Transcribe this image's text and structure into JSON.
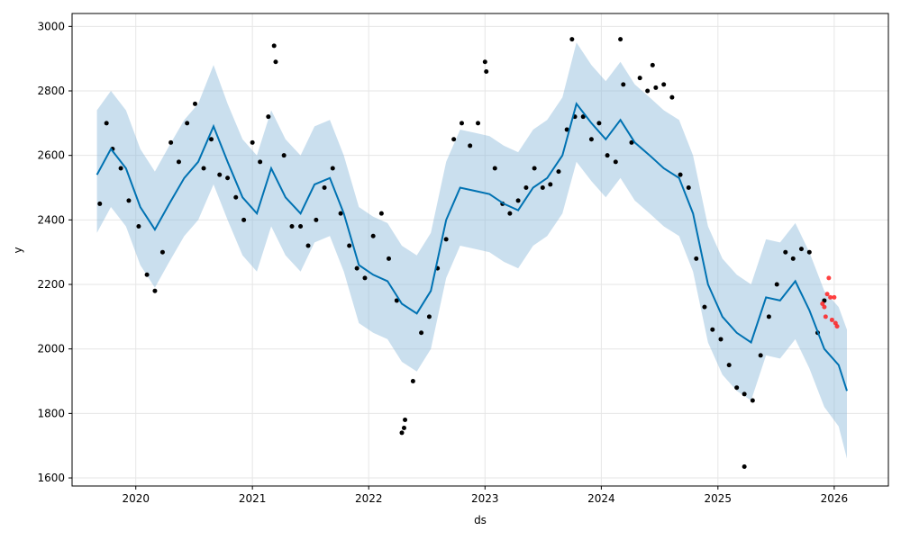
{
  "chart_data": {
    "type": "line",
    "title": "",
    "xlabel": "ds",
    "ylabel": "y",
    "xlim": [
      "2019-06-15",
      "2026-06-20"
    ],
    "ylim": [
      1575,
      3040
    ],
    "grid": true,
    "colors": {
      "forecast_line": "#0072B2",
      "uncertainty_band": "#8AB8D9",
      "observed_points": "#000000",
      "test_points": "#FF2020"
    },
    "x_ticks": [
      "2020",
      "2021",
      "2022",
      "2023",
      "2024",
      "2025",
      "2026"
    ],
    "y_ticks": [
      1600,
      1800,
      2000,
      2200,
      2400,
      2600,
      2800,
      3000
    ],
    "forecast": {
      "x": [
        "2019-09-01",
        "2019-10-15",
        "2019-12-01",
        "2020-01-15",
        "2020-03-01",
        "2020-04-15",
        "2020-06-01",
        "2020-07-15",
        "2020-09-01",
        "2020-10-15",
        "2020-12-01",
        "2021-01-15",
        "2021-03-01",
        "2021-04-15",
        "2021-06-01",
        "2021-07-15",
        "2021-09-01",
        "2021-10-15",
        "2021-12-01",
        "2022-01-15",
        "2022-03-01",
        "2022-04-15",
        "2022-06-01",
        "2022-07-15",
        "2022-09-01",
        "2022-10-15",
        "2022-12-01",
        "2023-01-15",
        "2023-03-01",
        "2023-04-15",
        "2023-06-01",
        "2023-07-15",
        "2023-09-01",
        "2023-10-15",
        "2023-12-01",
        "2024-01-15",
        "2024-03-01",
        "2024-04-15",
        "2024-06-01",
        "2024-07-15",
        "2024-09-01",
        "2024-10-15",
        "2024-12-01",
        "2025-01-15",
        "2025-03-01",
        "2025-04-15",
        "2025-06-01",
        "2025-07-15",
        "2025-09-01",
        "2025-10-15",
        "2025-12-01",
        "2026-01-15",
        "2026-02-10"
      ],
      "yhat": [
        2540,
        2620,
        2560,
        2440,
        2370,
        2450,
        2530,
        2580,
        2690,
        2580,
        2470,
        2420,
        2560,
        2470,
        2420,
        2510,
        2530,
        2420,
        2260,
        2230,
        2210,
        2140,
        2110,
        2180,
        2400,
        2500,
        2490,
        2480,
        2450,
        2430,
        2500,
        2530,
        2600,
        2760,
        2700,
        2650,
        2710,
        2640,
        2600,
        2560,
        2530,
        2420,
        2200,
        2100,
        2050,
        2020,
        2160,
        2150,
        2210,
        2120,
        2000,
        1950,
        1870
      ],
      "yhat_lower": [
        2360,
        2440,
        2380,
        2260,
        2190,
        2270,
        2350,
        2400,
        2510,
        2400,
        2290,
        2240,
        2380,
        2290,
        2240,
        2330,
        2350,
        2240,
        2080,
        2050,
        2030,
        1960,
        1930,
        2000,
        2220,
        2320,
        2310,
        2300,
        2270,
        2250,
        2320,
        2350,
        2420,
        2580,
        2520,
        2470,
        2530,
        2460,
        2420,
        2380,
        2350,
        2240,
        2020,
        1920,
        1870,
        1840,
        1980,
        1970,
        2030,
        1940,
        1820,
        1760,
        1660
      ],
      "yhat_upper": [
        2740,
        2800,
        2740,
        2620,
        2550,
        2630,
        2710,
        2760,
        2880,
        2760,
        2650,
        2600,
        2740,
        2650,
        2600,
        2690,
        2710,
        2600,
        2440,
        2410,
        2390,
        2320,
        2290,
        2360,
        2580,
        2680,
        2670,
        2660,
        2630,
        2610,
        2680,
        2710,
        2780,
        2950,
        2880,
        2830,
        2890,
        2820,
        2780,
        2740,
        2710,
        2600,
        2380,
        2280,
        2230,
        2200,
        2340,
        2330,
        2390,
        2300,
        2180,
        2130,
        2060
      ]
    },
    "observed": {
      "x": [
        "2019-09-10",
        "2019-10-01",
        "2019-10-20",
        "2019-11-15",
        "2019-12-10",
        "2020-01-10",
        "2020-02-05",
        "2020-03-01",
        "2020-03-25",
        "2020-04-20",
        "2020-05-15",
        "2020-06-10",
        "2020-07-05",
        "2020-08-01",
        "2020-08-25",
        "2020-09-20",
        "2020-10-15",
        "2020-11-10",
        "2020-12-05",
        "2021-01-01",
        "2021-01-25",
        "2021-02-20",
        "2021-03-15",
        "2021-04-10",
        "2021-05-05",
        "2021-06-01",
        "2021-06-25",
        "2021-07-20",
        "2021-08-15",
        "2021-09-10",
        "2021-10-05",
        "2021-11-01",
        "2021-11-25",
        "2021-12-20",
        "2022-01-15",
        "2022-02-10",
        "2022-03-05",
        "2022-03-30",
        "2022-04-25",
        "2022-05-20",
        "2022-06-15",
        "2022-07-10",
        "2022-08-05",
        "2022-09-01",
        "2022-09-25",
        "2022-10-20",
        "2022-11-15",
        "2022-12-10",
        "2023-01-05",
        "2023-02-01",
        "2023-02-25",
        "2023-03-20",
        "2023-04-15",
        "2023-05-10",
        "2023-06-05",
        "2023-07-01",
        "2023-07-25",
        "2023-08-20",
        "2023-09-15",
        "2023-10-10",
        "2023-11-05",
        "2023-12-01",
        "2023-12-25",
        "2024-01-20",
        "2024-02-15",
        "2024-03-10",
        "2024-04-05",
        "2024-05-01",
        "2024-05-25",
        "2024-06-20",
        "2024-07-15",
        "2024-08-10",
        "2024-09-05",
        "2024-10-01",
        "2024-10-25",
        "2024-11-20",
        "2024-12-15",
        "2025-01-10",
        "2025-02-05",
        "2025-03-01",
        "2025-03-25",
        "2025-04-20",
        "2025-05-15",
        "2025-06-10",
        "2025-07-05",
        "2025-08-01",
        "2025-08-25",
        "2025-09-20",
        "2025-10-15",
        "2025-11-10",
        "2025-12-01"
      ],
      "y": [
        2450,
        2700,
        2620,
        2560,
        2460,
        2380,
        2230,
        2180,
        2300,
        2640,
        2580,
        2700,
        2760,
        2560,
        2650,
        2540,
        2530,
        2470,
        2400,
        2640,
        2580,
        2720,
        2890,
        2600,
        2380,
        2380,
        2320,
        2400,
        2500,
        2560,
        2420,
        2320,
        2250,
        2220,
        2350,
        2420,
        2280,
        2150,
        1780,
        1900,
        2050,
        2100,
        2250,
        2340,
        2650,
        2700,
        2630,
        2700,
        2860,
        2560,
        2450,
        2420,
        2460,
        2500,
        2560,
        2500,
        2510,
        2550,
        2680,
        2720,
        2720,
        2650,
        2700,
        2600,
        2580,
        2820,
        2640,
        2840,
        2800,
        2810,
        2820,
        2780,
        2540,
        2500,
        2280,
        2130,
        2060,
        2030,
        1950,
        1880,
        1860,
        1840,
        1980,
        2100,
        2200,
        2300,
        2280,
        2310,
        2300,
        2050,
        2150
      ],
      "outliers_x": [
        "2022-04-15",
        "2022-04-22",
        "2025-03-25",
        "2023-01-01",
        "2021-03-10",
        "2024-03-01",
        "2023-10-01",
        "2024-06-10"
      ],
      "outliers_y": [
        1740,
        1755,
        1635,
        2890,
        2940,
        2960,
        2960,
        2880
      ]
    },
    "test": {
      "x": [
        "2025-11-25",
        "2025-12-01",
        "2025-12-05",
        "2025-12-10",
        "2025-12-15",
        "2025-12-20",
        "2025-12-25",
        "2026-01-01",
        "2026-01-05",
        "2026-01-10"
      ],
      "y": [
        2140,
        2130,
        2100,
        2170,
        2220,
        2160,
        2090,
        2160,
        2080,
        2070
      ]
    }
  }
}
